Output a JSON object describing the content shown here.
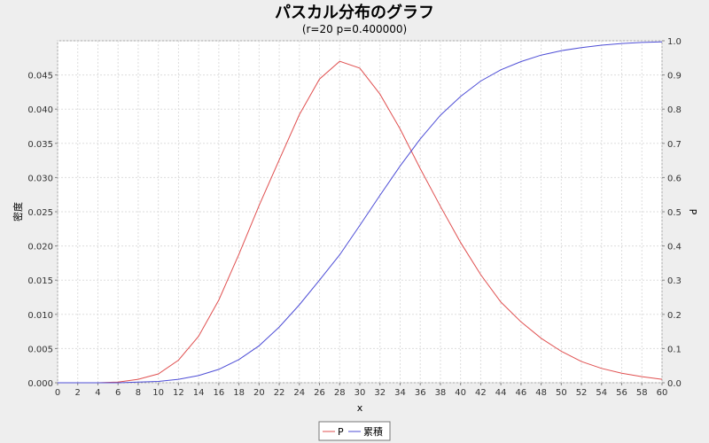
{
  "chart_data": {
    "type": "line",
    "title": "パスカル分布のグラフ",
    "subtitle": "(r=20 p=0.400000)",
    "xlabel": "x",
    "ylabel_left": "密度",
    "ylabel_right": "P",
    "xlim": [
      0,
      60
    ],
    "ylim_left": [
      0,
      0.05
    ],
    "ylim_right": [
      0,
      1.0
    ],
    "x_ticks": [
      0,
      2,
      4,
      6,
      8,
      10,
      12,
      14,
      16,
      18,
      20,
      22,
      24,
      26,
      28,
      30,
      32,
      34,
      36,
      38,
      40,
      42,
      44,
      46,
      48,
      50,
      52,
      54,
      56,
      58,
      60
    ],
    "y_left_ticks": [
      "0.000",
      "0.005",
      "0.010",
      "0.015",
      "0.020",
      "0.025",
      "0.030",
      "0.035",
      "0.040",
      "0.045"
    ],
    "y_right_ticks": [
      "0.0",
      "0.1",
      "0.2",
      "0.3",
      "0.4",
      "0.5",
      "0.6",
      "0.7",
      "0.8",
      "0.9",
      "1.0"
    ],
    "grid": true,
    "legend_position": "bottom-center",
    "series": [
      {
        "name": "P",
        "axis": "left",
        "color": "#e05050",
        "x": [
          0,
          2,
          4,
          6,
          8,
          10,
          12,
          14,
          16,
          18,
          20,
          22,
          24,
          26,
          28,
          30,
          32,
          34,
          36,
          38,
          40,
          42,
          44,
          46,
          48,
          50,
          52,
          54,
          56,
          58,
          60
        ],
        "values": [
          0.0,
          0.0,
          0.0,
          0.0001,
          0.0005,
          0.0013,
          0.0033,
          0.0068,
          0.0121,
          0.0188,
          0.0259,
          0.0326,
          0.0392,
          0.0444,
          0.047,
          0.046,
          0.0422,
          0.0371,
          0.0313,
          0.0258,
          0.0205,
          0.0158,
          0.0118,
          0.0089,
          0.0065,
          0.0046,
          0.0031,
          0.0021,
          0.0014,
          0.0009,
          0.0005
        ]
      },
      {
        "name": "累積",
        "axis": "right",
        "color": "#4d4dd6",
        "x": [
          0,
          2,
          4,
          6,
          8,
          10,
          12,
          14,
          16,
          18,
          20,
          22,
          24,
          26,
          28,
          30,
          32,
          34,
          36,
          38,
          40,
          42,
          44,
          46,
          48,
          50,
          52,
          54,
          56,
          58,
          60
        ],
        "values": [
          0.0,
          0.0,
          0.0,
          0.0,
          0.002,
          0.004,
          0.01,
          0.021,
          0.039,
          0.068,
          0.108,
          0.163,
          0.228,
          0.3,
          0.374,
          0.46,
          0.548,
          0.634,
          0.713,
          0.782,
          0.837,
          0.882,
          0.915,
          0.939,
          0.958,
          0.971,
          0.98,
          0.987,
          0.992,
          0.995,
          0.997
        ]
      }
    ]
  }
}
